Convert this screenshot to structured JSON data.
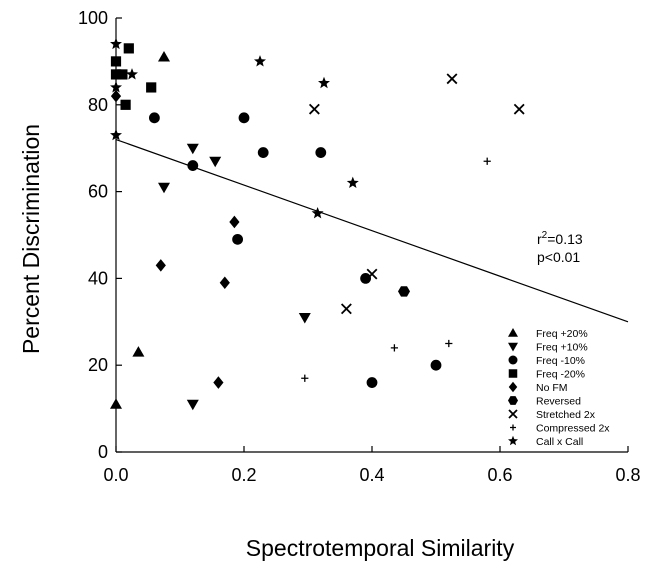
{
  "chart_data": {
    "type": "scatter",
    "xlabel": "Spectrotemporal Similarity",
    "ylabel": "Percent Discrimination",
    "xlim": [
      0.0,
      0.8
    ],
    "ylim": [
      0,
      100
    ],
    "xticks": [
      "0.0",
      "0.2",
      "0.4",
      "0.6",
      "0.8"
    ],
    "yticks": [
      "0",
      "20",
      "40",
      "60",
      "80",
      "100"
    ],
    "grid": false,
    "legend_position": "bottom-right",
    "annotation": {
      "r2_prefix": "r",
      "r2_sup": "2",
      "r2_value": "=0.13",
      "p": "p<0.01"
    },
    "regression_line": {
      "x": [
        0.0,
        0.8
      ],
      "y": [
        72,
        30
      ]
    },
    "series": [
      {
        "name": "Freq +20%",
        "marker": "triangle-up",
        "points": [
          [
            0.0,
            11
          ],
          [
            0.035,
            23
          ],
          [
            0.075,
            91
          ]
        ]
      },
      {
        "name": "Freq +10%",
        "marker": "triangle-down",
        "points": [
          [
            0.075,
            61
          ],
          [
            0.12,
            70
          ],
          [
            0.12,
            11
          ],
          [
            0.155,
            67
          ],
          [
            0.295,
            31
          ]
        ]
      },
      {
        "name": "Freq -10%",
        "marker": "circle",
        "points": [
          [
            0.06,
            77
          ],
          [
            0.12,
            66
          ],
          [
            0.2,
            77
          ],
          [
            0.23,
            69
          ],
          [
            0.19,
            49
          ],
          [
            0.32,
            69
          ],
          [
            0.39,
            40
          ],
          [
            0.4,
            16
          ],
          [
            0.5,
            20
          ]
        ]
      },
      {
        "name": "Freq -20%",
        "marker": "square",
        "points": [
          [
            0.0,
            90
          ],
          [
            0.0,
            87
          ],
          [
            0.01,
            87
          ],
          [
            0.02,
            93
          ],
          [
            0.015,
            80
          ],
          [
            0.055,
            84
          ]
        ]
      },
      {
        "name": "No FM",
        "marker": "diamond",
        "points": [
          [
            0.0,
            82
          ],
          [
            0.07,
            43
          ],
          [
            0.16,
            16
          ],
          [
            0.17,
            39
          ],
          [
            0.185,
            53
          ]
        ]
      },
      {
        "name": "Reversed",
        "marker": "hexagon",
        "points": [
          [
            0.45,
            37
          ]
        ]
      },
      {
        "name": "Stretched 2x",
        "marker": "x",
        "points": [
          [
            0.31,
            79
          ],
          [
            0.36,
            33
          ],
          [
            0.4,
            41
          ],
          [
            0.525,
            86
          ],
          [
            0.63,
            79
          ]
        ]
      },
      {
        "name": "Compressed 2x",
        "marker": "plus",
        "points": [
          [
            0.295,
            17
          ],
          [
            0.435,
            24
          ],
          [
            0.52,
            25
          ],
          [
            0.58,
            67
          ]
        ]
      },
      {
        "name": "Call x Call",
        "marker": "star",
        "points": [
          [
            0.0,
            94
          ],
          [
            0.0,
            84
          ],
          [
            0.0,
            73
          ],
          [
            0.025,
            87
          ],
          [
            0.225,
            90
          ],
          [
            0.315,
            55
          ],
          [
            0.325,
            85
          ],
          [
            0.37,
            62
          ]
        ]
      }
    ]
  }
}
